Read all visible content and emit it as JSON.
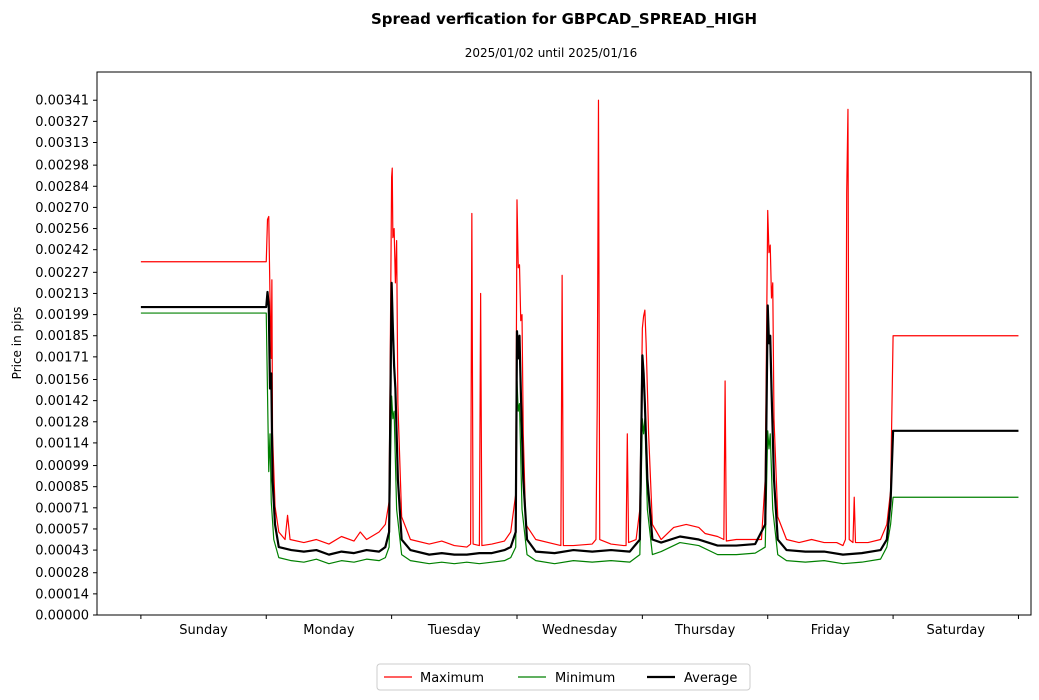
{
  "chart_data": {
    "type": "line",
    "title": "Spread verfication for GBPCAD_SPREAD_HIGH",
    "subtitle": "2025/01/02 until 2025/01/16",
    "xlabel": "",
    "ylabel": "Price in pips",
    "x_range": [
      -0.35,
      7.1
    ],
    "ylim": [
      0,
      0.003597
    ],
    "yticks": [
      "0.00000",
      "0.00014",
      "0.00028",
      "0.00043",
      "0.00057",
      "0.00071",
      "0.00085",
      "0.00099",
      "0.00114",
      "0.00128",
      "0.00142",
      "0.00156",
      "0.00171",
      "0.00185",
      "0.00199",
      "0.00213",
      "0.00227",
      "0.00242",
      "0.00256",
      "0.00270",
      "0.00284",
      "0.00298",
      "0.00313",
      "0.00327",
      "0.00341"
    ],
    "categories": [
      "Sunday",
      "Monday",
      "Tuesday",
      "Wednesday",
      "Thursday",
      "Friday",
      "Saturday"
    ],
    "category_centers": [
      0.5,
      1.5,
      2.5,
      3.5,
      4.5,
      5.5,
      6.5
    ],
    "grid": false,
    "legend_position": "bottom-center",
    "series": [
      {
        "name": "Maximum",
        "color": "#ff0000",
        "width": 1.2,
        "points": [
          [
            0,
            0.00234
          ],
          [
            1.0,
            0.00234
          ],
          [
            1.01,
            0.00262
          ],
          [
            1.02,
            0.00264
          ],
          [
            1.03,
            0.0021
          ],
          [
            1.04,
            0.0017
          ],
          [
            1.045,
            0.00222
          ],
          [
            1.05,
            0.0012
          ],
          [
            1.07,
            0.00072
          ],
          [
            1.1,
            0.00055
          ],
          [
            1.15,
            0.0005
          ],
          [
            1.17,
            0.00066
          ],
          [
            1.19,
            0.0005
          ],
          [
            1.3,
            0.00048
          ],
          [
            1.4,
            0.0005
          ],
          [
            1.5,
            0.00047
          ],
          [
            1.6,
            0.00052
          ],
          [
            1.7,
            0.00049
          ],
          [
            1.75,
            0.00055
          ],
          [
            1.8,
            0.0005
          ],
          [
            1.9,
            0.00055
          ],
          [
            1.95,
            0.0006
          ],
          [
            1.98,
            0.00075
          ],
          [
            2.0,
            0.0029
          ],
          [
            2.005,
            0.00296
          ],
          [
            2.01,
            0.0025
          ],
          [
            2.02,
            0.00256
          ],
          [
            2.03,
            0.0022
          ],
          [
            2.04,
            0.00248
          ],
          [
            2.05,
            0.0014
          ],
          [
            2.08,
            0.00065
          ],
          [
            2.15,
            0.0005
          ],
          [
            2.3,
            0.00047
          ],
          [
            2.4,
            0.00049
          ],
          [
            2.5,
            0.00046
          ],
          [
            2.6,
            0.00045
          ],
          [
            2.63,
            0.00047
          ],
          [
            2.64,
            0.00266
          ],
          [
            2.65,
            0.00047
          ],
          [
            2.7,
            0.00046
          ],
          [
            2.71,
            0.00213
          ],
          [
            2.72,
            0.00046
          ],
          [
            2.8,
            0.00047
          ],
          [
            2.9,
            0.00049
          ],
          [
            2.95,
            0.00055
          ],
          [
            2.99,
            0.0008
          ],
          [
            3.0,
            0.00275
          ],
          [
            3.01,
            0.0023
          ],
          [
            3.02,
            0.00232
          ],
          [
            3.03,
            0.00195
          ],
          [
            3.04,
            0.00199
          ],
          [
            3.05,
            0.0012
          ],
          [
            3.07,
            0.0006
          ],
          [
            3.15,
            0.0005
          ],
          [
            3.3,
            0.00047
          ],
          [
            3.35,
            0.00046
          ],
          [
            3.36,
            0.00225
          ],
          [
            3.37,
            0.00046
          ],
          [
            3.45,
            0.00046
          ],
          [
            3.6,
            0.00047
          ],
          [
            3.63,
            0.0005
          ],
          [
            3.64,
            0.00139
          ],
          [
            3.65,
            0.00341
          ],
          [
            3.66,
            0.0005
          ],
          [
            3.75,
            0.00047
          ],
          [
            3.85,
            0.00046
          ],
          [
            3.87,
            0.00046
          ],
          [
            3.88,
            0.0012
          ],
          [
            3.89,
            0.00048
          ],
          [
            3.95,
            0.0005
          ],
          [
            3.98,
            0.0007
          ],
          [
            4.0,
            0.0019
          ],
          [
            4.01,
            0.00198
          ],
          [
            4.02,
            0.00202
          ],
          [
            4.03,
            0.0018
          ],
          [
            4.05,
            0.0012
          ],
          [
            4.08,
            0.0006
          ],
          [
            4.15,
            0.0005
          ],
          [
            4.25,
            0.00058
          ],
          [
            4.35,
            0.0006
          ],
          [
            4.45,
            0.00058
          ],
          [
            4.5,
            0.00054
          ],
          [
            4.6,
            0.00052
          ],
          [
            4.65,
            0.0005
          ],
          [
            4.66,
            0.00155
          ],
          [
            4.67,
            0.00049
          ],
          [
            4.75,
            0.0005
          ],
          [
            4.85,
            0.0005
          ],
          [
            4.95,
            0.0005
          ],
          [
            4.98,
            0.0009
          ],
          [
            5.0,
            0.00268
          ],
          [
            5.01,
            0.0024
          ],
          [
            5.02,
            0.00245
          ],
          [
            5.03,
            0.0021
          ],
          [
            5.04,
            0.0022
          ],
          [
            5.05,
            0.0013
          ],
          [
            5.08,
            0.00065
          ],
          [
            5.15,
            0.0005
          ],
          [
            5.25,
            0.00048
          ],
          [
            5.35,
            0.0005
          ],
          [
            5.45,
            0.00048
          ],
          [
            5.55,
            0.00048
          ],
          [
            5.6,
            0.00046
          ],
          [
            5.62,
            0.0005
          ],
          [
            5.63,
            0.0028
          ],
          [
            5.64,
            0.00335
          ],
          [
            5.65,
            0.0005
          ],
          [
            5.68,
            0.00048
          ],
          [
            5.69,
            0.00078
          ],
          [
            5.7,
            0.00048
          ],
          [
            5.8,
            0.00048
          ],
          [
            5.9,
            0.0005
          ],
          [
            5.95,
            0.0006
          ],
          [
            5.98,
            0.00082
          ],
          [
            6.0,
            0.00185
          ],
          [
            7.0,
            0.00185
          ]
        ]
      },
      {
        "name": "Minimum",
        "color": "#008000",
        "width": 1.2,
        "points": [
          [
            0,
            0.002
          ],
          [
            1.0,
            0.002
          ],
          [
            1.02,
            0.00095
          ],
          [
            1.03,
            0.0012
          ],
          [
            1.04,
            0.00075
          ],
          [
            1.06,
            0.0005
          ],
          [
            1.1,
            0.00038
          ],
          [
            1.2,
            0.00036
          ],
          [
            1.3,
            0.00035
          ],
          [
            1.4,
            0.00037
          ],
          [
            1.5,
            0.00034
          ],
          [
            1.6,
            0.00036
          ],
          [
            1.7,
            0.00035
          ],
          [
            1.8,
            0.00037
          ],
          [
            1.9,
            0.00036
          ],
          [
            1.95,
            0.00038
          ],
          [
            1.98,
            0.00045
          ],
          [
            2.0,
            0.00145
          ],
          [
            2.01,
            0.0013
          ],
          [
            2.02,
            0.00135
          ],
          [
            2.04,
            0.0007
          ],
          [
            2.08,
            0.0004
          ],
          [
            2.15,
            0.00036
          ],
          [
            2.3,
            0.00034
          ],
          [
            2.4,
            0.00035
          ],
          [
            2.5,
            0.00034
          ],
          [
            2.6,
            0.00035
          ],
          [
            2.7,
            0.00034
          ],
          [
            2.8,
            0.00035
          ],
          [
            2.9,
            0.00036
          ],
          [
            2.95,
            0.00038
          ],
          [
            2.99,
            0.00045
          ],
          [
            3.0,
            0.00155
          ],
          [
            3.01,
            0.00135
          ],
          [
            3.02,
            0.0014
          ],
          [
            3.04,
            0.0007
          ],
          [
            3.08,
            0.0004
          ],
          [
            3.15,
            0.00036
          ],
          [
            3.3,
            0.00034
          ],
          [
            3.45,
            0.00036
          ],
          [
            3.6,
            0.00035
          ],
          [
            3.75,
            0.00036
          ],
          [
            3.9,
            0.00035
          ],
          [
            3.98,
            0.0004
          ],
          [
            4.0,
            0.0013
          ],
          [
            4.01,
            0.0012
          ],
          [
            4.02,
            0.0013
          ],
          [
            4.04,
            0.0007
          ],
          [
            4.08,
            0.0004
          ],
          [
            4.15,
            0.00042
          ],
          [
            4.3,
            0.00048
          ],
          [
            4.45,
            0.00046
          ],
          [
            4.6,
            0.0004
          ],
          [
            4.75,
            0.0004
          ],
          [
            4.9,
            0.00041
          ],
          [
            4.98,
            0.00045
          ],
          [
            5.0,
            0.00122
          ],
          [
            5.01,
            0.0011
          ],
          [
            5.02,
            0.0012
          ],
          [
            5.04,
            0.0007
          ],
          [
            5.08,
            0.0004
          ],
          [
            5.15,
            0.00036
          ],
          [
            5.3,
            0.00035
          ],
          [
            5.45,
            0.00036
          ],
          [
            5.6,
            0.00034
          ],
          [
            5.75,
            0.00035
          ],
          [
            5.9,
            0.00037
          ],
          [
            5.95,
            0.00045
          ],
          [
            5.98,
            0.0006
          ],
          [
            6.0,
            0.00078
          ],
          [
            7.0,
            0.00078
          ]
        ]
      },
      {
        "name": "Average",
        "color": "#000000",
        "width": 2.2,
        "points": [
          [
            0,
            0.00204
          ],
          [
            1.0,
            0.00204
          ],
          [
            1.01,
            0.00214
          ],
          [
            1.02,
            0.00205
          ],
          [
            1.03,
            0.0015
          ],
          [
            1.04,
            0.0016
          ],
          [
            1.05,
            0.0009
          ],
          [
            1.07,
            0.0006
          ],
          [
            1.1,
            0.00045
          ],
          [
            1.2,
            0.00043
          ],
          [
            1.3,
            0.00042
          ],
          [
            1.4,
            0.00043
          ],
          [
            1.5,
            0.0004
          ],
          [
            1.6,
            0.00042
          ],
          [
            1.7,
            0.00041
          ],
          [
            1.8,
            0.00043
          ],
          [
            1.9,
            0.00042
          ],
          [
            1.95,
            0.00045
          ],
          [
            1.98,
            0.00055
          ],
          [
            2.0,
            0.0022
          ],
          [
            2.01,
            0.0019
          ],
          [
            2.02,
            0.00165
          ],
          [
            2.03,
            0.0015
          ],
          [
            2.05,
            0.0009
          ],
          [
            2.08,
            0.0005
          ],
          [
            2.15,
            0.00043
          ],
          [
            2.3,
            0.0004
          ],
          [
            2.4,
            0.00041
          ],
          [
            2.5,
            0.0004
          ],
          [
            2.6,
            0.0004
          ],
          [
            2.7,
            0.00041
          ],
          [
            2.8,
            0.00041
          ],
          [
            2.9,
            0.00043
          ],
          [
            2.95,
            0.00045
          ],
          [
            2.99,
            0.00055
          ],
          [
            3.0,
            0.00188
          ],
          [
            3.01,
            0.0017
          ],
          [
            3.02,
            0.00185
          ],
          [
            3.03,
            0.0015
          ],
          [
            3.05,
            0.0009
          ],
          [
            3.08,
            0.0005
          ],
          [
            3.15,
            0.00042
          ],
          [
            3.3,
            0.00041
          ],
          [
            3.45,
            0.00043
          ],
          [
            3.6,
            0.00042
          ],
          [
            3.75,
            0.00043
          ],
          [
            3.9,
            0.00042
          ],
          [
            3.98,
            0.0005
          ],
          [
            4.0,
            0.00172
          ],
          [
            4.01,
            0.0016
          ],
          [
            4.02,
            0.0014
          ],
          [
            4.04,
            0.0009
          ],
          [
            4.08,
            0.0005
          ],
          [
            4.15,
            0.00048
          ],
          [
            4.3,
            0.00052
          ],
          [
            4.45,
            0.0005
          ],
          [
            4.6,
            0.00046
          ],
          [
            4.75,
            0.00046
          ],
          [
            4.9,
            0.00047
          ],
          [
            4.98,
            0.0006
          ],
          [
            5.0,
            0.00205
          ],
          [
            5.01,
            0.0018
          ],
          [
            5.02,
            0.00185
          ],
          [
            5.03,
            0.0015
          ],
          [
            5.05,
            0.0009
          ],
          [
            5.08,
            0.0005
          ],
          [
            5.15,
            0.00043
          ],
          [
            5.3,
            0.00042
          ],
          [
            5.45,
            0.00042
          ],
          [
            5.6,
            0.0004
          ],
          [
            5.75,
            0.00041
          ],
          [
            5.9,
            0.00043
          ],
          [
            5.95,
            0.0005
          ],
          [
            5.98,
            0.00075
          ],
          [
            6.0,
            0.00122
          ],
          [
            7.0,
            0.00122
          ]
        ]
      }
    ]
  }
}
